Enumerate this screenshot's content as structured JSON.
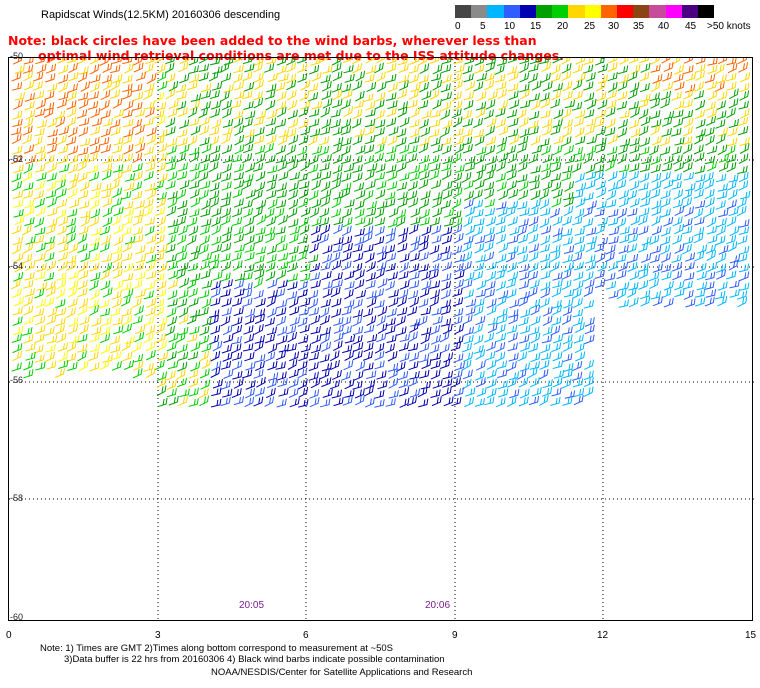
{
  "header": {
    "title": "Rapidscat Winds(12.5KM) 20160306 descending"
  },
  "colorbar": {
    "colors": [
      "#454545",
      "#8a8a8a",
      "#00b7ff",
      "#2f5dff",
      "#0000b0",
      "#00a000",
      "#00d000",
      "#ffd700",
      "#ffff00",
      "#ff6400",
      "#ff0000",
      "#8b4513",
      "#c84b9b",
      "#ff00ff",
      "#4b0082",
      "#000000"
    ],
    "labels": [
      "0",
      "5",
      "10",
      "15",
      "20",
      "25",
      "30",
      "35",
      "40",
      "45",
      ">50 knots"
    ]
  },
  "notes": {
    "line1": "Note: black circles have been added to the wind barbs, wherever less than",
    "line2": "optimal wind retrieval conditions are met due to the ISS attitude changes."
  },
  "map": {
    "lat_labels": [
      "-50",
      "-52",
      "-54",
      "-56",
      "-58",
      "-60"
    ],
    "lon_labels": [
      "0",
      "3",
      "6",
      "9",
      "12",
      "15"
    ],
    "times": [
      "20:05",
      "20:06"
    ]
  },
  "footer": {
    "note_line1": "Note: 1) Times are GMT 2)Times along bottom correspond to measurement at ~50S",
    "note_line2": "3)Data buffer is 22 hrs from 20160306 4) Black wind barbs indicate possible contamination",
    "credit": "NOAA/NESDIS/Center for Satellite Applications and Research"
  }
}
